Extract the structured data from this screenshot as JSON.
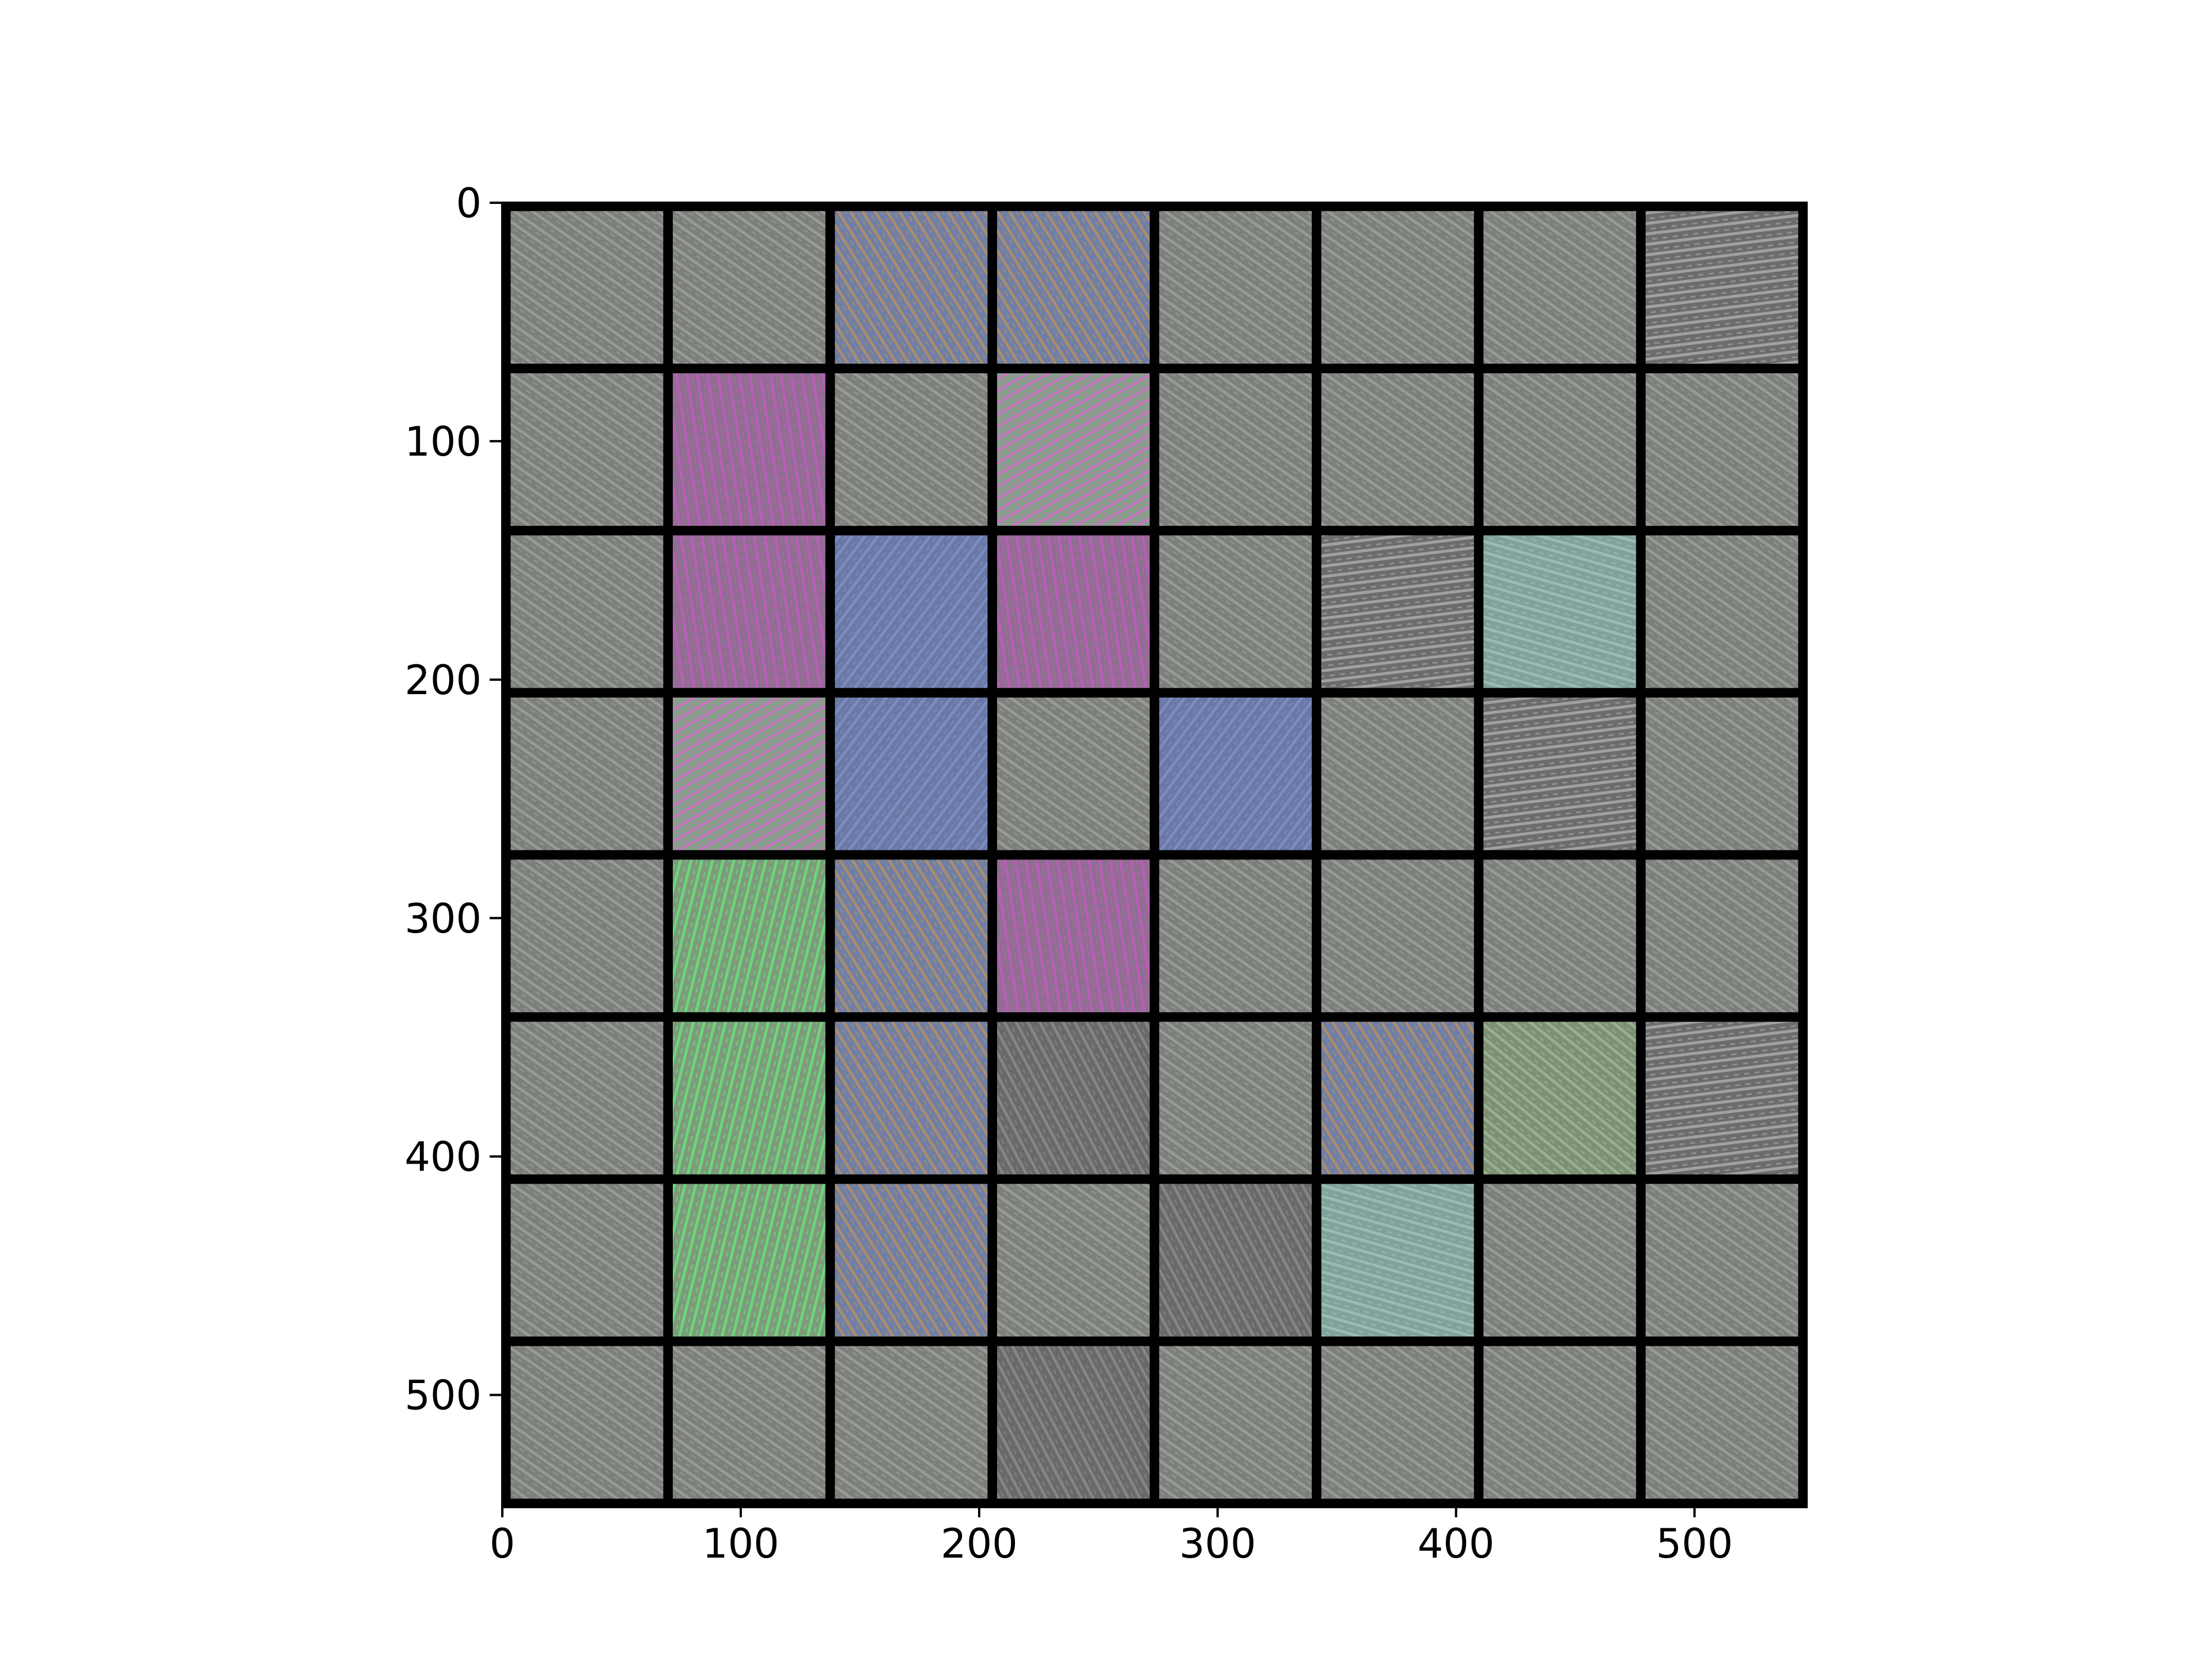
{
  "chart_data": {
    "type": "heatmap",
    "title": "",
    "xlabel": "",
    "ylabel": "",
    "xlim": [
      0,
      546
    ],
    "ylim": [
      546,
      0
    ],
    "grid": false,
    "legend": "none",
    "x_ticks": [
      {
        "value": 0,
        "label": "0"
      },
      {
        "value": 100,
        "label": "100"
      },
      {
        "value": 200,
        "label": "200"
      },
      {
        "value": 300,
        "label": "300"
      },
      {
        "value": 400,
        "label": "400"
      },
      {
        "value": 500,
        "label": "500"
      }
    ],
    "y_ticks": [
      {
        "value": 0,
        "label": "0"
      },
      {
        "value": 100,
        "label": "100"
      },
      {
        "value": 200,
        "label": "200"
      },
      {
        "value": 300,
        "label": "300"
      },
      {
        "value": 400,
        "label": "400"
      },
      {
        "value": 500,
        "label": "500"
      }
    ],
    "tile_grid": {
      "rows": 8,
      "cols": 8,
      "tile_size": 64,
      "separator": 4,
      "separator_color": "#000000",
      "texture_colors": {
        "gray": [
          "#7d7f7b",
          "#9aa09a"
        ],
        "blue-orange": [
          "#6f7fa6",
          "#b39066"
        ],
        "magenta": [
          "#8f6f8f",
          "#c05ac0"
        ],
        "green": [
          "#7e9a7c",
          "#6ae07a"
        ],
        "blue": [
          "#6b78a6",
          "#7f8fc2"
        ],
        "green-magenta": [
          "#86a08a",
          "#d070c8"
        ],
        "mottled": [
          "#6c6c6c",
          "#a8aca8"
        ],
        "teal": [
          "#82a09c",
          "#9cc0b8"
        ],
        "olive-green": [
          "#7f8f76",
          "#9ab88f"
        ],
        "dark": [
          "#6a6868",
          "#8c8a8c"
        ]
      },
      "tiles": [
        [
          "gray",
          "gray",
          "blue-orange",
          "blue-orange",
          "gray",
          "gray",
          "gray",
          "mottled"
        ],
        [
          "gray",
          "magenta",
          "gray",
          "green-magenta",
          "gray",
          "gray",
          "gray",
          "gray"
        ],
        [
          "gray",
          "magenta",
          "blue",
          "magenta",
          "gray",
          "mottled",
          "teal",
          "gray"
        ],
        [
          "gray",
          "green-magenta",
          "blue",
          "gray",
          "blue",
          "gray",
          "mottled",
          "gray"
        ],
        [
          "gray",
          "green",
          "blue-orange",
          "magenta",
          "gray",
          "gray",
          "gray",
          "gray"
        ],
        [
          "gray",
          "green",
          "blue-orange",
          "dark",
          "gray",
          "blue-orange",
          "olive-green",
          "mottled"
        ],
        [
          "gray",
          "green",
          "blue-orange",
          "gray",
          "dark",
          "teal",
          "gray",
          "gray"
        ],
        [
          "gray",
          "gray",
          "gray",
          "dark",
          "gray",
          "gray",
          "gray",
          "gray"
        ]
      ]
    }
  }
}
